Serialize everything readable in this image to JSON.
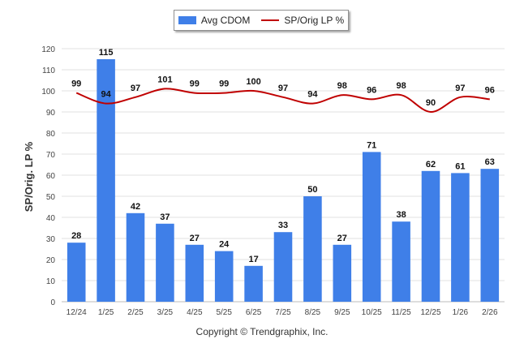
{
  "chart_data": {
    "type": "bar",
    "categories": [
      "12/24",
      "1/25",
      "2/25",
      "3/25",
      "4/25",
      "5/25",
      "6/25",
      "7/25",
      "8/25",
      "9/25",
      "10/25",
      "11/25",
      "12/25",
      "1/26",
      "2/26"
    ],
    "series": [
      {
        "name": "Avg CDOM",
        "type": "bar",
        "color": "#3f7fe8",
        "values": [
          28,
          115,
          42,
          37,
          27,
          24,
          17,
          33,
          50,
          27,
          71,
          38,
          62,
          61,
          63
        ]
      },
      {
        "name": "SP/Orig LP %",
        "type": "line",
        "color": "#c00000",
        "values": [
          99,
          94,
          97,
          101,
          99,
          99,
          100,
          97,
          94,
          98,
          96,
          98,
          90,
          97,
          96
        ]
      }
    ],
    "xlabel": "",
    "ylabel": "SP/Orig. LP %",
    "ylim": [
      0,
      120
    ],
    "yticks": [
      0,
      10,
      20,
      30,
      40,
      50,
      60,
      70,
      80,
      90,
      100,
      110,
      120
    ],
    "grid": true,
    "legend_position": "top-center"
  },
  "footer": "Copyright © Trendgraphix, Inc."
}
